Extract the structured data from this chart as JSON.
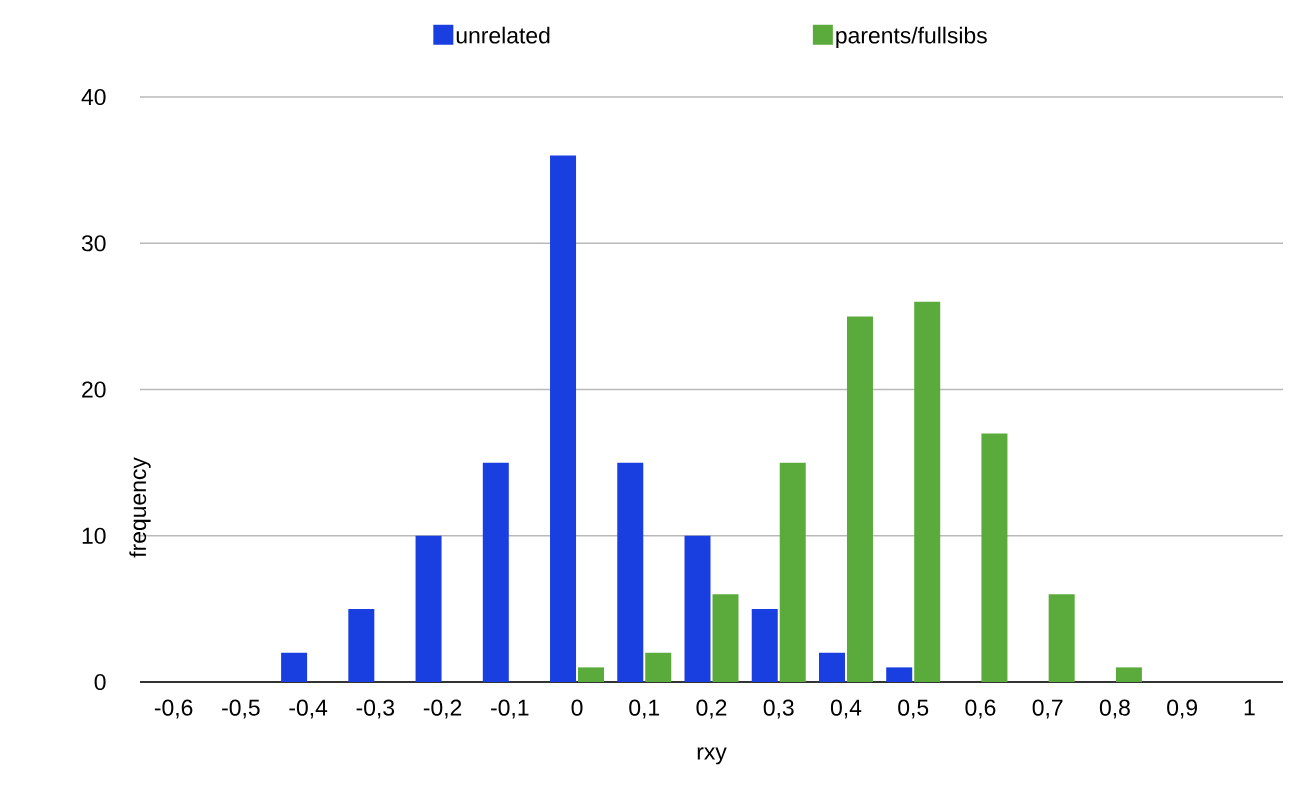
{
  "chart_data": {
    "type": "bar",
    "xlabel": "rxy",
    "ylabel": "frequency",
    "categories": [
      "-0,6",
      "-0,5",
      "-0,4",
      "-0,3",
      "-0,2",
      "-0,1",
      "0",
      "0,1",
      "0,2",
      "0,3",
      "0,4",
      "0,5",
      "0,6",
      "0,7",
      "0,8",
      "0,9",
      "1"
    ],
    "series": [
      {
        "name": "unrelated",
        "color": "#1a3fe0",
        "values": [
          0,
          0,
          2,
          5,
          10,
          15,
          36,
          15,
          10,
          5,
          2,
          1,
          0,
          0,
          0,
          0,
          0
        ]
      },
      {
        "name": "parents/fullsibs",
        "color": "#5aaa3c",
        "values": [
          0,
          0,
          0,
          0,
          0,
          0,
          1,
          2,
          6,
          15,
          25,
          26,
          17,
          6,
          1,
          0,
          0
        ]
      }
    ],
    "ylim": [
      0,
      40
    ],
    "yticks": [
      0,
      10,
      20,
      30,
      40
    ],
    "grid": "y",
    "legend": "top"
  }
}
